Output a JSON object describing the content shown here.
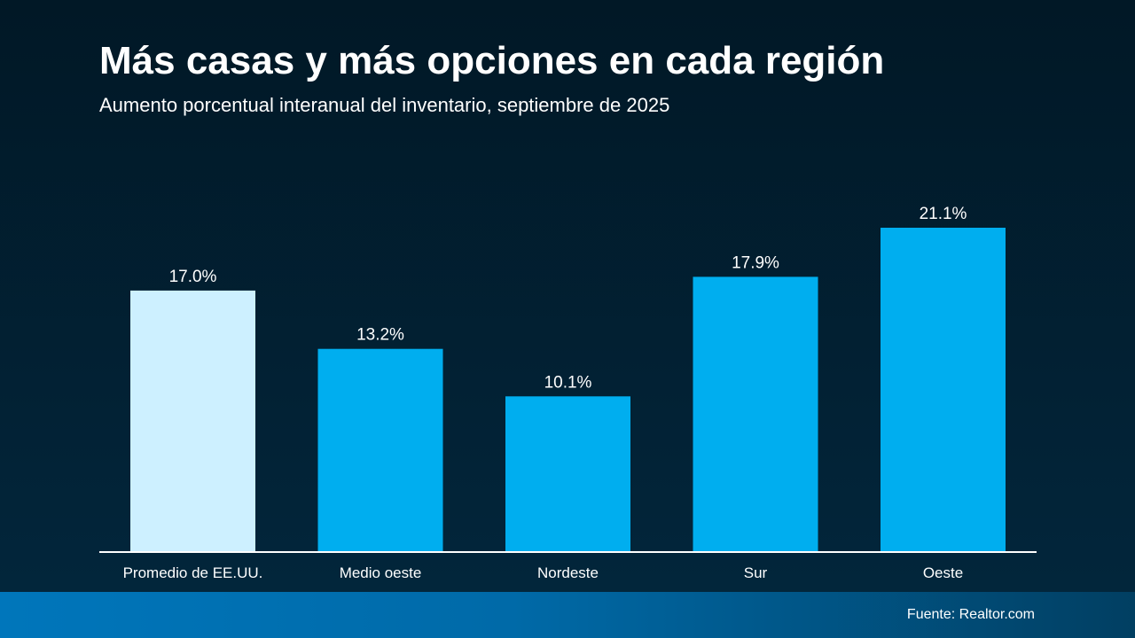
{
  "chart_data": {
    "type": "bar",
    "title": "Más casas y más opciones en cada región",
    "subtitle": "Aumento porcentual interanual del inventario, septiembre de 2025",
    "categories": [
      "Promedio de EE.UU.",
      "Medio oeste",
      "Nordeste",
      "Sur",
      "Oeste"
    ],
    "values": [
      17.0,
      13.2,
      10.1,
      17.9,
      21.1
    ],
    "data_labels": [
      "17.0%",
      "13.2%",
      "10.1%",
      "17.9%",
      "21.1%"
    ],
    "ylim": [
      0,
      21.1
    ],
    "grid": false,
    "legend": "none",
    "colors": {
      "highlight": "#cdf0ff",
      "bar": "#00aeef",
      "baseline": "#ffffff"
    }
  },
  "footer": {
    "source": "Fuente: Realtor.com"
  }
}
